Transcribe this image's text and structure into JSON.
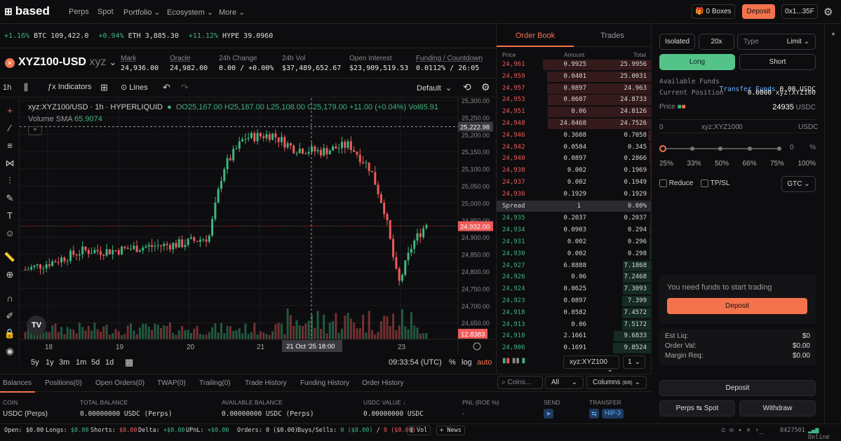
{
  "app": {
    "brand": "based",
    "nav": [
      "Perps",
      "Spot",
      "Portfolio",
      "Ecosystem",
      "More"
    ],
    "boxes": "0 Boxes",
    "deposit": "Deposit",
    "wallet": "0x1...35F"
  },
  "ticker": [
    {
      "chg": "+1.16%",
      "sym": "BTC",
      "price": "109,422.0"
    },
    {
      "chg": "+0.94%",
      "sym": "ETH",
      "price": "3,885.30"
    },
    {
      "chg": "+11.12%",
      "sym": "HYPE",
      "price": "39.0960"
    }
  ],
  "market": {
    "symbol": "XYZ100-USD",
    "dex": "xyz",
    "stats": [
      {
        "label": "Mark",
        "value": "24,936.00"
      },
      {
        "label": "Oracle",
        "value": "24,982.00"
      },
      {
        "label": "24h Change",
        "value": "0.00 / +0.00%"
      },
      {
        "label": "24h Vol",
        "value": "$37,489,652.67"
      },
      {
        "label": "Open Interest",
        "value": "$23,909,519.53"
      },
      {
        "label": "Funding / Countdown",
        "value": "0.0112% / 26:05"
      }
    ]
  },
  "toolbar": {
    "interval": "1h",
    "indicators": "Indicators",
    "lines": "Lines",
    "layout": "Default"
  },
  "chart": {
    "legend": "xyz:XYZ100/USD · 1h · HYPERLIQUID",
    "ohlc": {
      "o": "O25,167.00",
      "h": "H25,187.00",
      "l": "L25,108.00",
      "c": "C25,179.00",
      "chg": "+11.00 (+0.04%)",
      "vol": "Vol65.91"
    },
    "sma": "Volume SMA",
    "sma_val": "65.9074",
    "price_ticks": [
      "25,300.00",
      "25,250.00",
      "25,200.00",
      "25,150.00",
      "25,100.00",
      "25,050.00",
      "25,000.00",
      "24,950.00",
      "24,900.00",
      "24,850.00",
      "24,800.00",
      "24,750.00",
      "24,700.00",
      "24,650.00"
    ],
    "crosshair_price": "25,222.98",
    "last_price": "24,932.00",
    "vol_label": "12.8383",
    "date_ticks": [
      "18",
      "19",
      "20",
      "21",
      "23"
    ],
    "crosshair_date": "21 Oct '25  18:00",
    "ranges": [
      "5y",
      "1y",
      "3m",
      "1m",
      "5d",
      "1d"
    ],
    "clock": "09:33:54 (UTC)",
    "scale": [
      "%",
      "log",
      "auto"
    ]
  },
  "bottom_tabs": [
    "Balances",
    "Positions(0)",
    "Open Orders(0)",
    "TWAP(0)",
    "Trailing(0)",
    "Trade History",
    "Funding History",
    "Order History"
  ],
  "balances": {
    "headers": [
      "COIN",
      "TOTAL BALANCE",
      "AVAILABLE BALANCE",
      "USDC VALUE ↓",
      "PNL (ROE %)",
      "SEND",
      "TRANSFER"
    ],
    "row": [
      "USDC (Perps)",
      "0.00000000 USDC (Perps)",
      "0.00000000 USDC (Perps)",
      "0.00000000 USDC",
      "-",
      "",
      "HIP-3"
    ]
  },
  "orderbook": {
    "tabs": [
      "Order Book",
      "Trades"
    ],
    "headers": [
      "Price",
      "Amount",
      "Total"
    ],
    "asks": [
      [
        "24,961",
        "0.9925",
        "25.9956"
      ],
      [
        "24,959",
        "0.0401",
        "25.0031"
      ],
      [
        "24,957",
        "0.0897",
        "24.963"
      ],
      [
        "24,953",
        "0.0607",
        "24.8733"
      ],
      [
        "24,951",
        "0.06",
        "24.8126"
      ],
      [
        "24,948",
        "24.0468",
        "24.7526"
      ],
      [
        "24,946",
        "0.3608",
        "0.7058"
      ],
      [
        "24,942",
        "0.0584",
        "0.345"
      ],
      [
        "24,940",
        "0.0897",
        "0.2866"
      ],
      [
        "24,938",
        "0.002",
        "0.1969"
      ],
      [
        "24,937",
        "0.002",
        "0.1949"
      ],
      [
        "24,936",
        "0.1929",
        "0.1929"
      ]
    ],
    "spread": [
      "Spread",
      "1",
      "0.00%"
    ],
    "bids": [
      [
        "24,935",
        "0.2037",
        "0.2037"
      ],
      [
        "24,934",
        "0.0903",
        "0.294"
      ],
      [
        "24,931",
        "0.002",
        "0.296"
      ],
      [
        "24,930",
        "0.002",
        "0.298"
      ],
      [
        "24,927",
        "6.8888",
        "7.1868"
      ],
      [
        "24,926",
        "0.06",
        "7.2468"
      ],
      [
        "24,924",
        "0.0625",
        "7.3093"
      ],
      [
        "24,923",
        "0.0897",
        "7.399"
      ],
      [
        "24,918",
        "0.0582",
        "7.4572"
      ],
      [
        "24,913",
        "0.06",
        "7.5172"
      ],
      [
        "24,910",
        "2.1661",
        "9.6833"
      ],
      [
        "24,906",
        "0.1691",
        "9.8524"
      ]
    ],
    "symbol_select": "xyz:XYZ100",
    "agg": "1"
  },
  "trade": {
    "margin": "Isolated",
    "leverage": "20x",
    "type_label": "Type",
    "type_value": "Limit",
    "long": "Long",
    "short": "Short",
    "avail_label": "Available Funds",
    "transfer": "Transfer Funds",
    "avail_value": "0.00",
    "avail_unit": "USDC",
    "pos_label": "Current Position",
    "pos_value": "0.0000",
    "pos_unit": "xyz:XYZ100",
    "price_label": "Price",
    "price_value": "24935",
    "price_unit": "USDC",
    "size_ph": "0",
    "size_unit": "xyz:XYZ100",
    "usdc_ph": "0",
    "usdc_unit": "USDC",
    "slider_val": "0",
    "pct": [
      "25%",
      "33%",
      "50%",
      "66%",
      "75%",
      "100%"
    ],
    "reduce": "Reduce",
    "tpsl": "TP/SL",
    "tif": "GTC",
    "need_funds": "You need funds to start trading",
    "deposit": "Deposit",
    "est_liq": "Est Liq:",
    "est_liq_v": "$0",
    "order_val": "Order Val:",
    "order_val_v": "$0.00",
    "margin_req": "Margin Req:",
    "margin_req_v": "$0.00",
    "deposit2": "Deposit",
    "perps_spot": "Perps ⇆ Spot",
    "withdraw": "Withdraw"
  },
  "filters": {
    "coins_ph": "Coins...",
    "all": "All",
    "columns": "Columns",
    "columns_count": "(6/6)"
  },
  "status": {
    "open": "Open: $0.00",
    "longs": "Longs:",
    "longs_v": "$0.00",
    "shorts": "Shorts:",
    "shorts_v": "$0.00",
    "delta": "Delta:",
    "delta_v": "+$0.00",
    "upnl": "UPnL:",
    "upnl_v": "+$0.00",
    "orders": "Orders: 0 ($0.00)",
    "buys": "Buys/Sells:",
    "buys_v": "0 ($0.00)",
    "sells_v": "0 ($0.00)",
    "vol": "Vol",
    "news": "+ News",
    "block": "8427501",
    "online": "Online"
  }
}
